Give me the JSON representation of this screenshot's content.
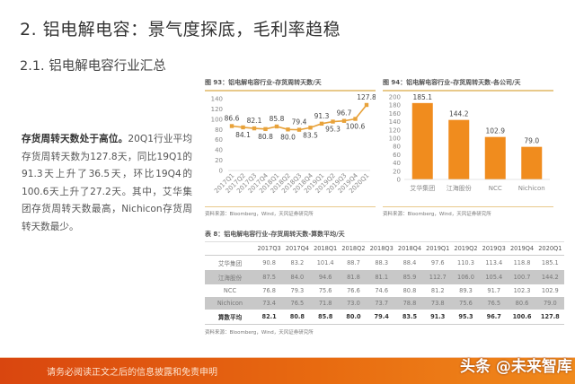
{
  "heading": {
    "section": "2. 铝电解电容：景气度探底，毛利率趋稳",
    "subsection": "2.1. 铝电解电容行业汇总"
  },
  "paragraph": {
    "bold_lead": "存货周转天数处于高位。",
    "body": "20Q1行业平均存货周转天数为127.8天，同比19Q1的91.3天上升了36.5天，环比19Q4的100.6天上升了27.2天。其中，艾华集团存货周转天数最高，Nichicon存货周转天数最少。"
  },
  "figure93": {
    "title": "图 93：铝电解电容行业-存货周转天数/天",
    "source": "资料来源：Bloomberg，Wind，天风证券研究所"
  },
  "figure94": {
    "title": "图 94：铝电解电容行业-存货周转天数-各公司/天",
    "source": "资料来源：Bloomberg，Wind，天风证券研究所"
  },
  "table8": {
    "title": "表 8：铝电解电容行业-存货周转天数-算数平均/天",
    "source": "资料来源：Bloomberg，Wind，天风证券研究所",
    "columns": [
      "",
      "2017Q3",
      "2017Q4",
      "2018Q1",
      "2018Q2",
      "2018Q3",
      "2018Q4",
      "2019Q1",
      "2019Q2",
      "2019Q3",
      "2019Q4",
      "2020Q1"
    ],
    "rows": [
      {
        "label": "艾华集团",
        "values": [
          "90.8",
          "83.2",
          "101.4",
          "88.7",
          "88.3",
          "88.4",
          "97.6",
          "110.3",
          "113.4",
          "118.8",
          "185.1"
        ]
      },
      {
        "label": "江海股份",
        "values": [
          "87.5",
          "84.0",
          "94.6",
          "81.8",
          "81.1",
          "85.9",
          "112.7",
          "106.0",
          "105.4",
          "100.7",
          "144.2"
        ]
      },
      {
        "label": "NCC",
        "values": [
          "76.8",
          "79.3",
          "75.6",
          "76.6",
          "74.6",
          "80.8",
          "81.2",
          "89.3",
          "91.7",
          "102.3",
          "102.9"
        ]
      },
      {
        "label": "Nichicon",
        "values": [
          "73.4",
          "76.5",
          "71.8",
          "73.0",
          "73.7",
          "78.8",
          "73.8",
          "75.6",
          "76.5",
          "80.6",
          "79.0"
        ]
      },
      {
        "label": "算数平均",
        "values": [
          "82.1",
          "80.8",
          "85.8",
          "80.0",
          "79.4",
          "83.5",
          "91.3",
          "95.3",
          "96.7",
          "100.6",
          "127.8"
        ]
      }
    ]
  },
  "footer": {
    "disclaimer": "请务必阅读正文之后的信息披露和免责申明",
    "watermark": "头条 @未来智库"
  },
  "colors": {
    "line": "#e8a23a",
    "bar": "#f08c1e",
    "footer_start": "#d9460f",
    "footer_end": "#f08a1c",
    "rule": "#e8c98a"
  },
  "chart_data": [
    {
      "type": "line",
      "title": "图 93：铝电解电容行业-存货周转天数/天",
      "categories": [
        "2017Q1",
        "2017Q2",
        "2017Q3",
        "2017Q4",
        "2018Q1",
        "2018Q2",
        "2018Q3",
        "2018Q4",
        "2019Q1",
        "2019Q2",
        "2019Q3",
        "2019Q4",
        "2020Q1"
      ],
      "values": [
        86.6,
        84.1,
        82.1,
        80.8,
        85.8,
        80.0,
        79.4,
        83.5,
        91.3,
        95.3,
        96.7,
        100.6,
        127.8
      ],
      "xlabel": "",
      "ylabel": "天",
      "ylim": [
        0,
        140
      ],
      "yticks": [
        0,
        20,
        40,
        60,
        80,
        100,
        120,
        140
      ],
      "grid": false
    },
    {
      "type": "bar",
      "title": "图 94：铝电解电容行业-存货周转天数-各公司/天",
      "categories": [
        "艾华集团",
        "江海股份",
        "NCC",
        "Nichicon"
      ],
      "values": [
        185.1,
        144.2,
        102.9,
        79.0
      ],
      "xlabel": "",
      "ylabel": "天",
      "ylim": [
        0,
        200
      ],
      "yticks": [
        0,
        20,
        40,
        60,
        80,
        100,
        120,
        140,
        160,
        180,
        200
      ],
      "grid": false
    }
  ]
}
